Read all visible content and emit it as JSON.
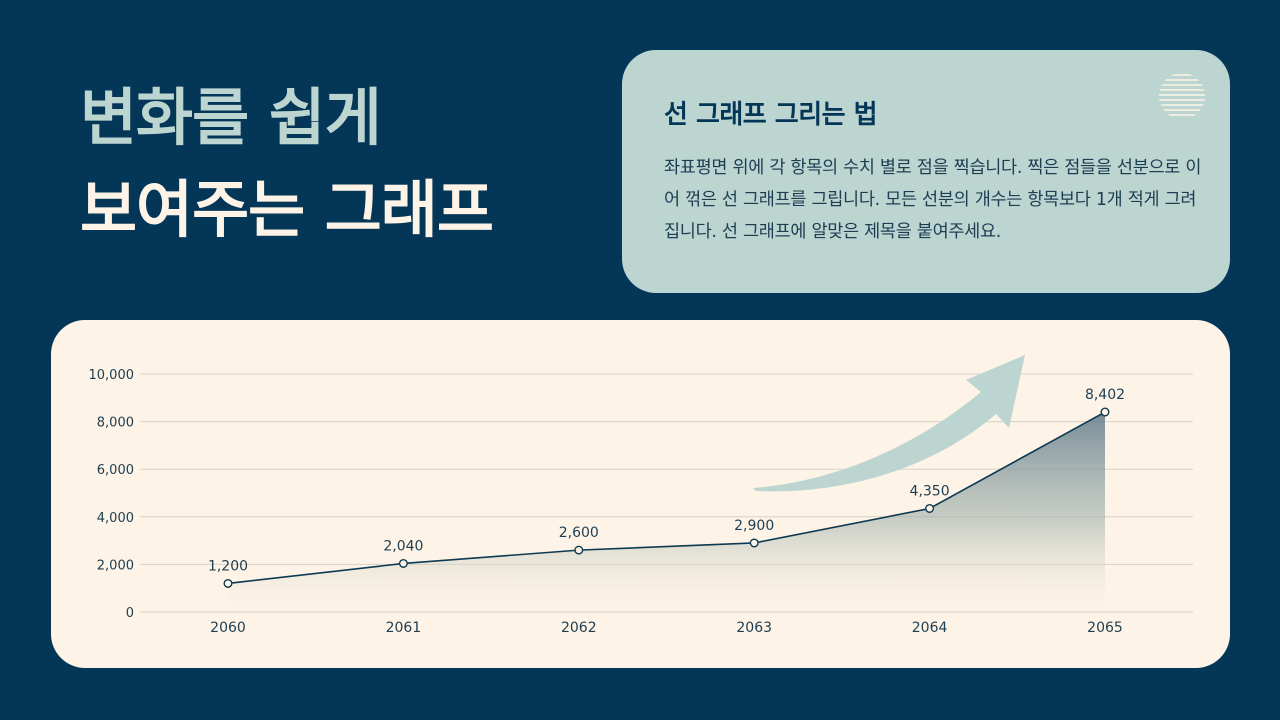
{
  "headline": {
    "line1": "변화를 쉽게",
    "line2": "보여주는 그래프"
  },
  "info_card": {
    "title": "선 그래프 그리는 법",
    "body": "좌표평면 위에 각 항목의 수치 별로 점을 찍습니다. 찍은 점들을 선분으로 이어 꺾은 선 그래프를 그립니다. 모든 선분의 개수는 항목보다 1개 적게 그려집니다. 선 그래프에 알맞은 제목을 붙여주세요.",
    "icon": "striped-circle-icon"
  },
  "colors": {
    "background": "#033657",
    "accent_mint": "#bcd5d1",
    "cream": "#fdf3e6",
    "line": "#0d3a52"
  },
  "chart_data": {
    "type": "area",
    "title": "",
    "xlabel": "",
    "ylabel": "",
    "categories": [
      "2060",
      "2061",
      "2062",
      "2063",
      "2064",
      "2065"
    ],
    "values": [
      1200,
      2040,
      2600,
      2900,
      4350,
      8402
    ],
    "value_labels": [
      "1,200",
      "2,040",
      "2,600",
      "2,900",
      "4,350",
      "8,402"
    ],
    "yticks": [
      0,
      2000,
      4000,
      6000,
      8000,
      10000
    ],
    "ytick_labels": [
      "0",
      "2,000",
      "4,000",
      "6,000",
      "8,000",
      "10,000"
    ],
    "ylim": [
      0,
      10000
    ],
    "grid": true,
    "legend": "none",
    "annotations": [
      "upward-trend-arrow"
    ]
  }
}
